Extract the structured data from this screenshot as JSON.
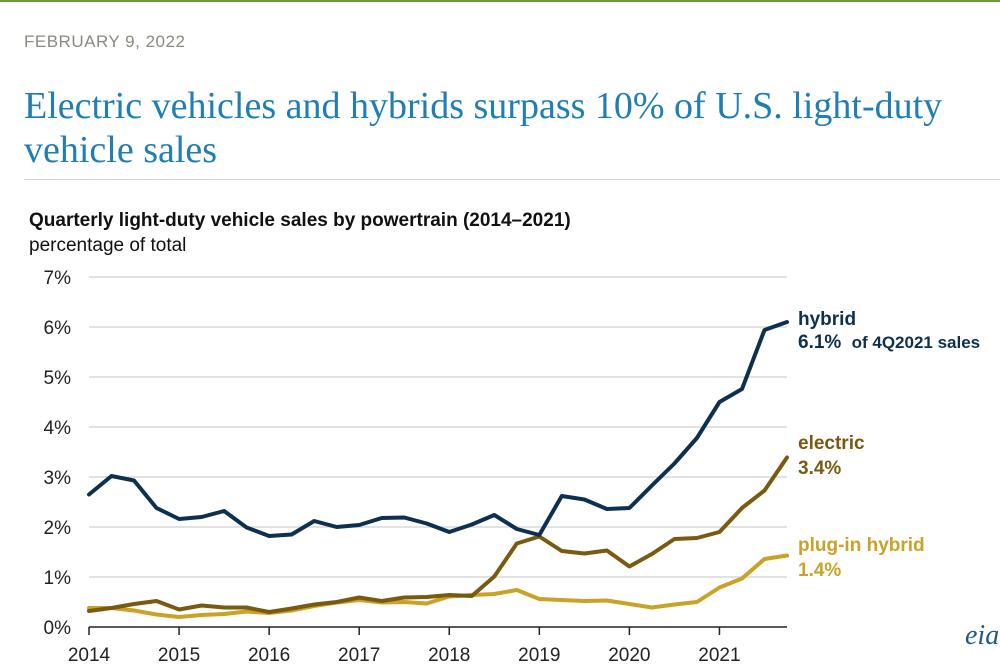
{
  "header": {
    "date": "FEBRUARY 9, 2022",
    "headline": "Electric vehicles and hybrids surpass 10% of U.S. light-duty vehicle sales"
  },
  "logo": {
    "text": "eia"
  },
  "colors": {
    "hybrid": "#0e3050",
    "electric": "#7a5a10",
    "plugin": "#c9a227",
    "grid": "#d9d9d9",
    "axis": "#222222"
  },
  "chart_data": {
    "type": "line",
    "title": "Quarterly light-duty vehicle sales by powertrain (2014–2021)",
    "ylabel": "percentage of total",
    "ylim": [
      0,
      7
    ],
    "yticks": [
      0,
      1,
      2,
      3,
      4,
      5,
      6,
      7
    ],
    "yticklabels": [
      "0%",
      "1%",
      "2%",
      "3%",
      "4%",
      "5%",
      "6%",
      "7%"
    ],
    "xlim": [
      2014,
      2021.75
    ],
    "xticks": [
      2014,
      2015,
      2016,
      2017,
      2018,
      2019,
      2020,
      2021
    ],
    "xticklabels": [
      "2014",
      "2015",
      "2016",
      "2017",
      "2018",
      "2019",
      "2020",
      "2021"
    ],
    "grid": true,
    "x": [
      2014,
      2014.25,
      2014.5,
      2014.75,
      2015,
      2015.25,
      2015.5,
      2015.75,
      2016,
      2016.25,
      2016.5,
      2016.75,
      2017,
      2017.25,
      2017.5,
      2017.75,
      2018,
      2018.25,
      2018.5,
      2018.75,
      2019,
      2019.25,
      2019.5,
      2019.75,
      2020,
      2020.25,
      2020.5,
      2020.75,
      2021,
      2021.25,
      2021.5,
      2021.75
    ],
    "series": [
      {
        "key": "hybrid",
        "name": "hybrid",
        "value_label": "6.1%",
        "note": "of 4Q2021 sales",
        "values": [
          2.65,
          3.02,
          2.93,
          2.38,
          2.16,
          2.2,
          2.32,
          1.99,
          1.82,
          1.85,
          2.12,
          2.0,
          2.04,
          2.18,
          2.19,
          2.07,
          1.9,
          2.05,
          2.24,
          1.96,
          1.84,
          2.62,
          2.55,
          2.36,
          2.38,
          2.83,
          3.27,
          3.78,
          4.5,
          4.76,
          5.94,
          6.1
        ]
      },
      {
        "key": "electric",
        "name": "electric",
        "value_label": "3.4%",
        "values": [
          0.32,
          0.38,
          0.46,
          0.52,
          0.35,
          0.43,
          0.39,
          0.39,
          0.3,
          0.37,
          0.45,
          0.5,
          0.59,
          0.52,
          0.59,
          0.6,
          0.64,
          0.62,
          1.01,
          1.67,
          1.81,
          1.52,
          1.47,
          1.53,
          1.21,
          1.46,
          1.76,
          1.78,
          1.9,
          2.38,
          2.73,
          3.39
        ]
      },
      {
        "key": "plugin",
        "name": "plug-in hybrid",
        "value_label": "1.4%",
        "values": [
          0.38,
          0.38,
          0.33,
          0.25,
          0.2,
          0.24,
          0.26,
          0.31,
          0.28,
          0.33,
          0.42,
          0.49,
          0.54,
          0.49,
          0.5,
          0.47,
          0.61,
          0.64,
          0.66,
          0.74,
          0.56,
          0.54,
          0.52,
          0.53,
          0.46,
          0.39,
          0.45,
          0.5,
          0.79,
          0.97,
          1.36,
          1.43
        ]
      }
    ]
  }
}
